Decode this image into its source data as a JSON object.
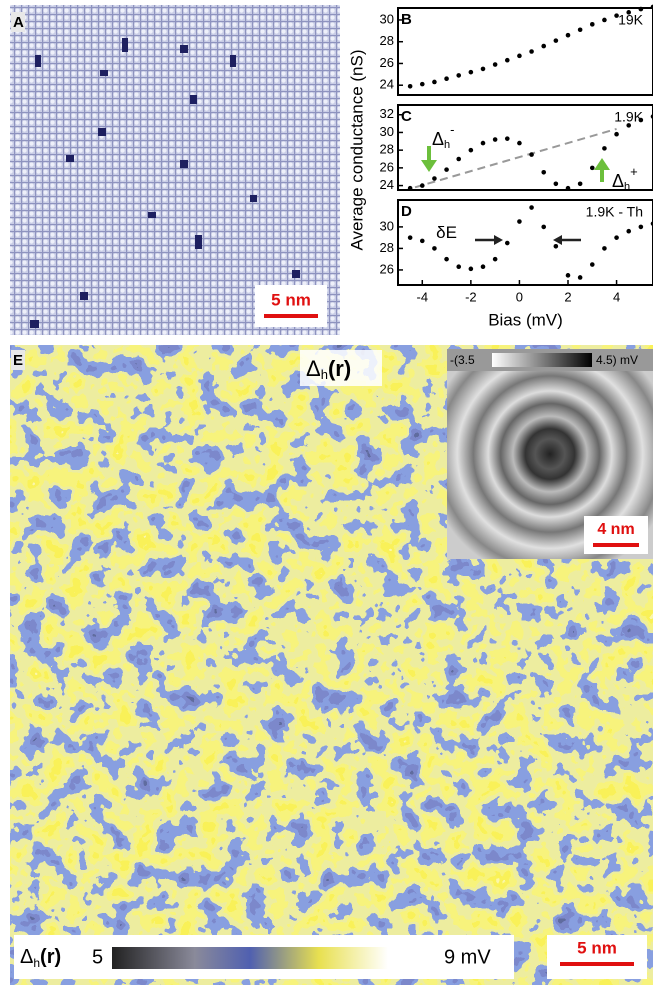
{
  "chart_data": [
    {
      "type": "scatter",
      "panel": "B",
      "annotation": "19K",
      "x": [
        -4.5,
        -4,
        -3.5,
        -3,
        -2.5,
        -2,
        -1.5,
        -1,
        -0.5,
        0,
        0.5,
        1,
        1.5,
        2,
        2.5,
        3,
        3.5,
        4,
        4.5,
        5,
        5.5
      ],
      "values": [
        23.9,
        24.1,
        24.3,
        24.6,
        24.9,
        25.2,
        25.5,
        25.9,
        26.3,
        26.7,
        27.1,
        27.6,
        28.1,
        28.6,
        29.1,
        29.6,
        30.0,
        30.4,
        30.7,
        31.0,
        31.2
      ],
      "color": "#000000",
      "xlim": [
        -5,
        5.5
      ],
      "ylim": [
        23.1,
        31.1
      ],
      "yticks": [
        24,
        26,
        28,
        30
      ]
    },
    {
      "type": "scatter",
      "panel": "C",
      "annotation": "1.9K",
      "x": [
        -4.5,
        -4,
        -3.5,
        -3,
        -2.5,
        -2,
        -1.5,
        -1,
        -0.5,
        0,
        0.5,
        1,
        1.5,
        2,
        2.5,
        3,
        3.5,
        4,
        4.5,
        5,
        5.5
      ],
      "values": [
        23.7,
        24.0,
        24.8,
        25.8,
        27.0,
        28.0,
        28.8,
        29.2,
        29.3,
        28.8,
        27.5,
        25.5,
        24.2,
        23.7,
        24.2,
        26.0,
        28.2,
        29.8,
        30.8,
        31.4,
        31.8
      ],
      "color": "#000000",
      "xlim": [
        -5,
        5.5
      ],
      "ylim": [
        23.5,
        33.1
      ],
      "yticks": [
        24,
        26,
        28,
        30,
        32
      ],
      "dashed_line": {
        "x": [
          -4.3,
          4
        ],
        "values": [
          23.8,
          30.4
        ],
        "color": "#999999"
      },
      "gap_labels": {
        "minus": {
          "symbol": "Δ",
          "sub": "h",
          "sup": "-"
        },
        "plus": {
          "symbol": "Δ",
          "sub": "h",
          "sup": "+"
        }
      }
    },
    {
      "type": "scatter",
      "panel": "D",
      "annotation": "1.9K - Th",
      "shift_label": "δE",
      "x": [
        -4.5,
        -4,
        -3.5,
        -3,
        -2.5,
        -2,
        -1.5,
        -1,
        -0.5,
        0,
        0.5,
        1,
        1.5,
        2,
        2.5,
        3,
        3.5,
        4,
        4.5,
        5,
        5.5
      ],
      "values": [
        29.0,
        28.7,
        28.0,
        27.0,
        26.3,
        26.1,
        26.3,
        27.0,
        28.5,
        30.5,
        31.8,
        30.0,
        28.2,
        25.5,
        25.3,
        26.5,
        28.0,
        29.0,
        29.6,
        30.0,
        30.3
      ],
      "color": "#000000",
      "xlim": [
        -5,
        5.5
      ],
      "ylim": [
        24.6,
        32.5
      ],
      "yticks": [
        26,
        28,
        30
      ],
      "xticks": [
        -4,
        -2,
        0,
        2,
        4
      ],
      "xlabel": "Bias (mV)"
    }
  ],
  "ylabel": "Average conductance (nS)",
  "panel_a": {
    "label": "A",
    "scalebar": "5 nm"
  },
  "panel_e": {
    "label": "E",
    "map_title": {
      "symbol": "Δ",
      "sub": "h",
      "rest": "(r)"
    },
    "inset": {
      "range_low": "-(3.5",
      "range_high": "4.5) mV",
      "scalebar": "4 nm"
    },
    "colorbar": {
      "symbol": "Δ",
      "sub": "h",
      "rest": "(r)",
      "low": "5",
      "high": "9 mV"
    },
    "scalebar": "5 nm"
  }
}
